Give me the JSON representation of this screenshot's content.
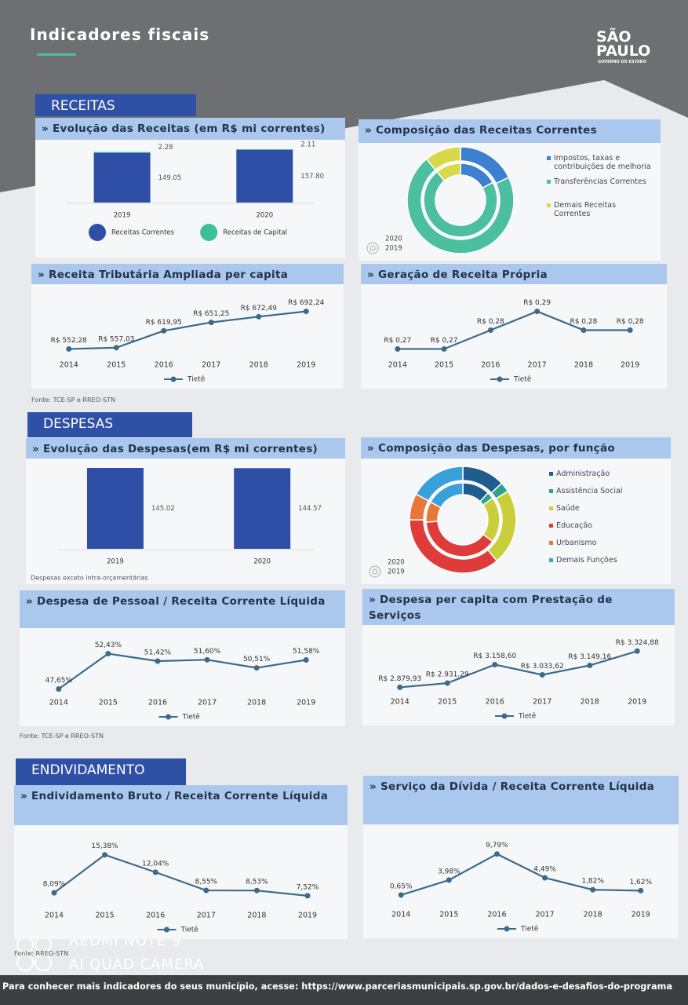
{
  "header": {
    "title": "Indicadores fiscais",
    "logo": "SÃO PAULO",
    "logo_sub": "GOVERNO DO ESTADO"
  },
  "sections": [
    {
      "title": "RECEITAS",
      "source": "Fonte: TCE-SP e RREO-STN",
      "panels": [
        {
          "type": "bar",
          "title": "» Evolução das Receitas (em R$ mi correntes)",
          "categories": [
            "2019",
            "2020"
          ],
          "series": [
            {
              "name": "Receitas Correntes",
              "color": "#2f4fa6",
              "values": [
                149.05,
                157.8
              ],
              "value_labels": [
                "149.05",
                "157.80"
              ]
            },
            {
              "name": "Receitas de Capital",
              "color": "#3cbf9a",
              "values": [
                2.28,
                2.11
              ]
            }
          ]
        },
        {
          "type": "donut",
          "title": "» Composição das Receitas Correntes",
          "categories": [
            "Impostos, taxas e contribuições de melhoria",
            "Transferências Correntes",
            "Demais Receitas Correntes"
          ],
          "colors": [
            "#3d7fd0",
            "#4cbfa0",
            "#d8d84a"
          ],
          "series": [
            {
              "name": "2020",
              "values": [
                18,
                71,
                11
              ]
            },
            {
              "name": "2019",
              "values": [
                17,
                72,
                11
              ]
            }
          ]
        },
        {
          "type": "line",
          "title": "» Receita Tributária Ampliada per capita",
          "categories": [
            "2014",
            "2015",
            "2016",
            "2017",
            "2018",
            "2019"
          ],
          "series": [
            {
              "name": "Tietê",
              "color": "#3b6a8a",
              "values": [
                552.28,
                557.03,
                619.95,
                651.25,
                672.49,
                692.24
              ],
              "value_labels": [
                "R$ 552,28",
                "R$ 557,03",
                "R$ 619,95",
                "R$ 651,25",
                "R$ 672,49",
                "R$ 692,24"
              ]
            }
          ]
        },
        {
          "type": "line",
          "title": "» Geração de Receita Própria",
          "categories": [
            "2014",
            "2015",
            "2016",
            "2017",
            "2018",
            "2019"
          ],
          "series": [
            {
              "name": "Tietê",
              "color": "#3b6a8a",
              "values": [
                0.27,
                0.27,
                0.28,
                0.29,
                0.28,
                0.28
              ],
              "value_labels": [
                "R$ 0,27",
                "R$ 0,27",
                "R$ 0,28",
                "R$ 0,29",
                "R$ 0,28",
                "R$ 0,28"
              ]
            }
          ]
        }
      ]
    },
    {
      "title": "DESPESAS",
      "source": "Fonte: TCE-SP e RREO-STN",
      "panels": [
        {
          "type": "bar",
          "title": "» Evolução das Despesas(em R$ mi correntes)",
          "categories": [
            "2019",
            "2020"
          ],
          "note": "Despesas exceto intra-orçamentárias",
          "series": [
            {
              "color": "#2f4fa6",
              "values": [
                145.02,
                144.57
              ]
            }
          ]
        },
        {
          "type": "donut",
          "title": "» Composição das Despesas, por função",
          "categories": [
            "Administração",
            "Assistência Social",
            "Saúde",
            "Educação",
            "Urbanismo",
            "Demais Funções"
          ],
          "colors": [
            "#1f5d8f",
            "#2aa38a",
            "#c8cf3a",
            "#e03b3b",
            "#e8773a",
            "#3aa0dc"
          ],
          "series": [
            {
              "name": "2020",
              "values": [
                13,
                3,
                23,
                36,
                8,
                17
              ]
            },
            {
              "name": "2019",
              "values": [
                12,
                3,
                20,
                39,
                9,
                17
              ]
            }
          ]
        },
        {
          "type": "line",
          "title": "» Despesa de Pessoal / Receita Corrente Líquida",
          "categories": [
            "2014",
            "2015",
            "2016",
            "2017",
            "2018",
            "2019"
          ],
          "series": [
            {
              "name": "Tietê",
              "color": "#3b6a8a",
              "values": [
                47.65,
                52.43,
                51.42,
                51.6,
                50.51,
                51.58
              ],
              "value_labels": [
                "47,65%",
                "52,43%",
                "51,42%",
                "51,60%",
                "50,51%",
                "51,58%"
              ]
            }
          ]
        },
        {
          "type": "line",
          "title": "» Despesa per capita com Prestação de Serviços",
          "categories": [
            "2014",
            "2015",
            "2016",
            "2017",
            "2018",
            "2019"
          ],
          "series": [
            {
              "name": "Tietê",
              "color": "#3b6a8a",
              "values": [
                2879.93,
                2931.29,
                3158.6,
                3033.62,
                3149.16,
                3324.88
              ],
              "value_labels": [
                "R$ 2.879,93",
                "R$ 2.931,29",
                "R$ 3.158,60",
                "R$ 3.033,62",
                "R$ 3.149,16",
                "R$ 3.324,88"
              ]
            }
          ]
        }
      ]
    },
    {
      "title": "ENDIVIDAMENTO",
      "source": "Fonte: RREO-STN",
      "panels": [
        {
          "type": "line",
          "title": "» Endividamento Bruto / Receita Corrente Líquida",
          "categories": [
            "2014",
            "2015",
            "2016",
            "2017",
            "2018",
            "2019"
          ],
          "series": [
            {
              "name": "Tietê",
              "color": "#3b6a8a",
              "values": [
                8.09,
                15.38,
                12.04,
                8.55,
                8.53,
                7.52
              ],
              "value_labels": [
                "8,09%",
                "15,38%",
                "12,04%",
                "8,55%",
                "8,53%",
                "7,52%"
              ]
            }
          ]
        },
        {
          "type": "line",
          "title": "» Serviço da Dívida / Receita Corrente Líquida",
          "categories": [
            "2014",
            "2015",
            "2016",
            "2017",
            "2018",
            "2019"
          ],
          "series": [
            {
              "name": "Tietê",
              "color": "#3b6a8a",
              "values": [
                0.65,
                3.98,
                9.79,
                4.49,
                1.82,
                1.62
              ],
              "value_labels": [
                "0,65%",
                "3,98%",
                "9,79%",
                "4,49%",
                "1,82%",
                "1,62%"
              ]
            }
          ]
        }
      ]
    }
  ],
  "footer": "Para conhecer mais indicadores do seus município, acesse: https://www.parceriasmunicipais.sp.gov.br/dados-e-desafios-do-programa",
  "watermark": [
    "REDMI NOTE 9",
    "AI QUAD CAMERA"
  ]
}
